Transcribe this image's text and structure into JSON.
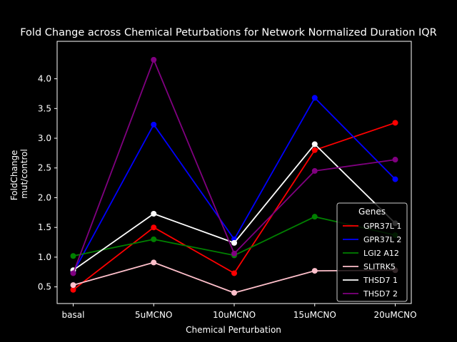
{
  "chart_data": {
    "type": "line",
    "title": "Fold Change across Chemical Peturbations for Network Normalized Duration IQR",
    "xlabel": "Chemical Perturbation",
    "ylabel_lines": [
      "FoldChange",
      "mut/control"
    ],
    "categories": [
      "basal",
      "5uMCNO",
      "10uMCNO",
      "15uMCNO",
      "20uMCNO"
    ],
    "yticks": [
      "0.5",
      "1.0",
      "1.5",
      "2.0",
      "2.5",
      "3.0",
      "3.5",
      "4.0"
    ],
    "ylim": [
      0.22,
      4.63
    ],
    "grid": false,
    "legend_title": "Genes",
    "legend_position": "lower-right",
    "series": [
      {
        "name": "GPR37L 1",
        "color": "#ff0000",
        "values": [
          0.45,
          1.5,
          0.73,
          2.8,
          3.26
        ]
      },
      {
        "name": "GPR37L 2",
        "color": "#0000ff",
        "values": [
          0.74,
          3.23,
          1.3,
          3.68,
          2.31
        ]
      },
      {
        "name": "LGI2 A12",
        "color": "#008000",
        "values": [
          1.02,
          1.3,
          1.03,
          1.68,
          1.37
        ]
      },
      {
        "name": "SLITRK5",
        "color": "#ffc0cb",
        "values": [
          0.53,
          0.91,
          0.4,
          0.77,
          0.78
        ]
      },
      {
        "name": "THSD7 1",
        "color": "#ffffff",
        "values": [
          0.78,
          1.73,
          1.24,
          2.9,
          1.57
        ]
      },
      {
        "name": "THSD7 2",
        "color": "#800080",
        "values": [
          0.73,
          4.32,
          1.06,
          2.45,
          2.64
        ]
      }
    ]
  }
}
